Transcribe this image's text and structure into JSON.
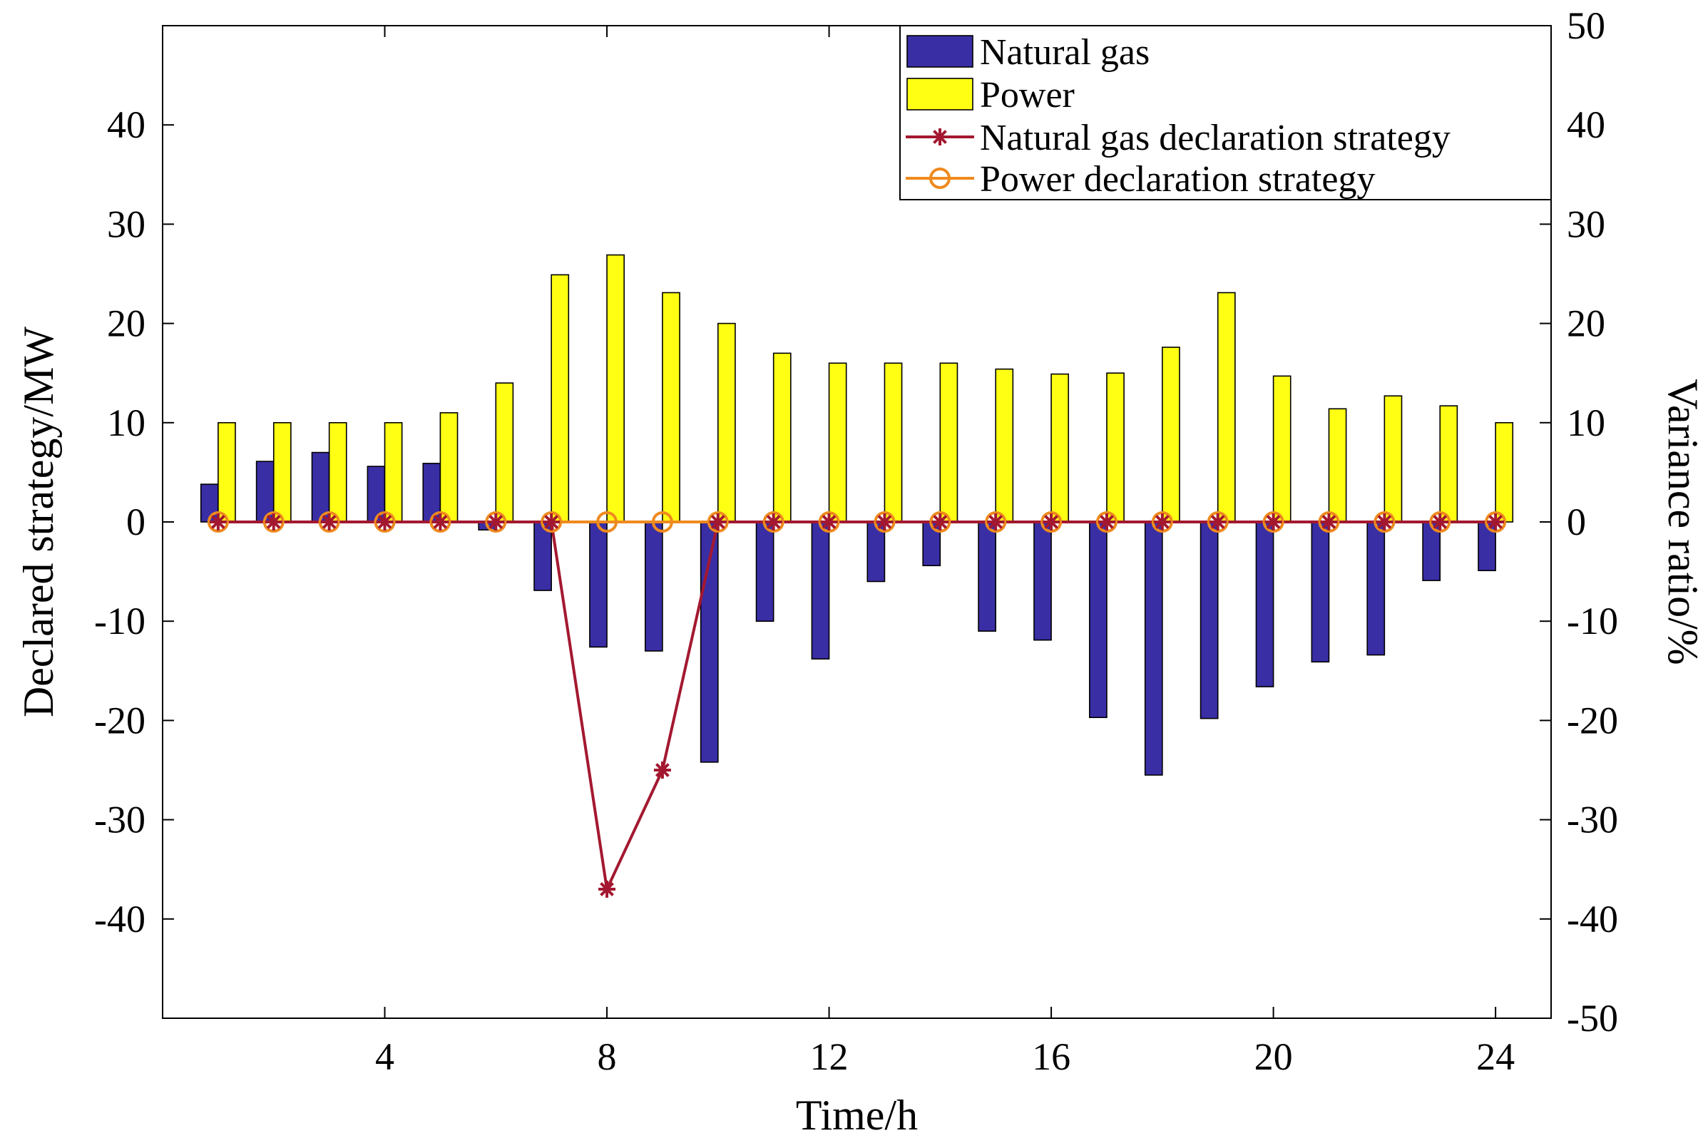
{
  "chart_data": {
    "type": "bar+line",
    "xlabel": "Time/h",
    "ylabel_left": "Declared strategy/MW",
    "ylabel_right": "Variance ratio/%",
    "xlim": [
      0,
      25
    ],
    "x_ticks": [
      4,
      8,
      12,
      16,
      20,
      24
    ],
    "ylim_left": [
      -50,
      50
    ],
    "y_ticks_left": [
      -40,
      -30,
      -20,
      -10,
      0,
      10,
      20,
      30,
      40
    ],
    "ylim_right": [
      -50,
      50
    ],
    "y_ticks_right": [
      -50,
      -40,
      -30,
      -20,
      -10,
      0,
      10,
      20,
      30,
      40,
      50
    ],
    "grid": false,
    "legend_position": "top-right",
    "x": [
      1,
      2,
      3,
      4,
      5,
      6,
      7,
      8,
      9,
      10,
      11,
      12,
      13,
      14,
      15,
      16,
      17,
      18,
      19,
      20,
      21,
      22,
      23,
      24
    ],
    "bar_series": [
      {
        "name": "Natural gas",
        "color": "#3a2ea5",
        "values": [
          3.8,
          6.1,
          7.0,
          5.6,
          5.9,
          -0.8,
          -6.9,
          -12.6,
          -13.0,
          -24.2,
          -10.0,
          -13.8,
          -6.0,
          -4.4,
          -11.0,
          -11.9,
          -19.7,
          -25.5,
          -19.8,
          -16.6,
          -14.1,
          -13.4,
          -5.9,
          -4.9
        ]
      },
      {
        "name": "Power",
        "color": "#ffff14",
        "values": [
          10.0,
          10.0,
          10.0,
          10.0,
          11.0,
          14.0,
          24.9,
          26.9,
          23.1,
          20.0,
          17.0,
          16.0,
          16.0,
          16.0,
          15.4,
          14.9,
          15.0,
          17.6,
          23.1,
          14.7,
          11.4,
          12.7,
          11.7,
          10.0
        ]
      }
    ],
    "line_series": [
      {
        "name": "Natural gas declaration strategy",
        "color": "#a31830",
        "marker": "asterisk",
        "axis": "right",
        "values": [
          0,
          0,
          0,
          0,
          0,
          0,
          0,
          -37,
          -25,
          0,
          0,
          0,
          0,
          0,
          0,
          0,
          0,
          0,
          0,
          0,
          0,
          0,
          0,
          0
        ]
      },
      {
        "name": "Power declaration strategy",
        "color": "#ee8a1e",
        "marker": "circle",
        "axis": "right",
        "values": [
          0,
          0,
          0,
          0,
          0,
          0,
          0,
          0,
          0,
          0,
          0,
          0,
          0,
          0,
          0,
          0,
          0,
          0,
          0,
          0,
          0,
          0,
          0,
          0
        ]
      }
    ]
  }
}
